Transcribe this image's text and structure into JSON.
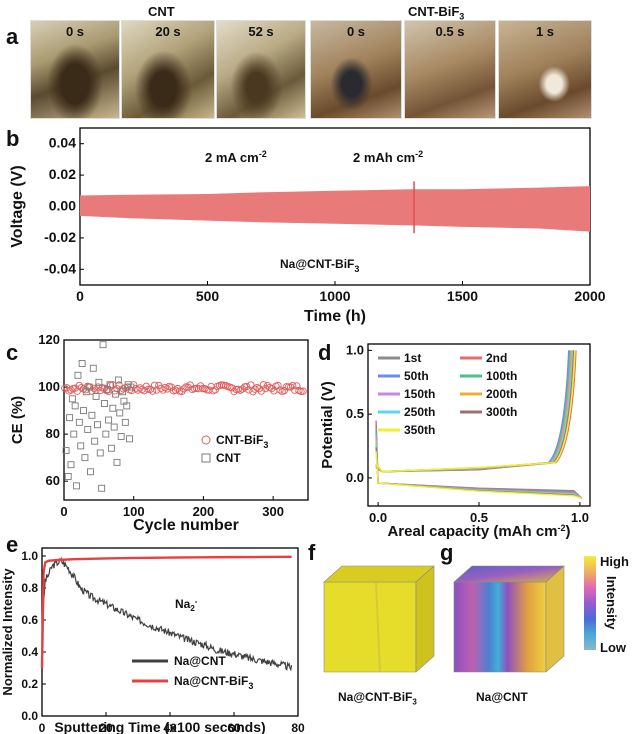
{
  "panel_a": {
    "label": "a",
    "groups": [
      {
        "title": "CNT",
        "times": [
          "0 s",
          "20 s",
          "52 s"
        ]
      },
      {
        "title": "CNT-BiF",
        "title_sub": "3",
        "times": [
          "0 s",
          "0.5 s",
          "1 s"
        ]
      }
    ]
  },
  "chart_data": [
    {
      "id": "b",
      "type": "line",
      "label": "b",
      "xlabel": "Time (h)",
      "ylabel": "Voltage (V)",
      "xlim": [
        0,
        2000
      ],
      "ylim": [
        -0.05,
        0.05
      ],
      "xticks": [
        "0",
        "500",
        "1000",
        "1500",
        "2000"
      ],
      "yticks": [
        "-0.04",
        "-0.02",
        "0.00",
        "0.02",
        "0.04"
      ],
      "annotations": {
        "current": "2 mA cm",
        "current_sup": "-2",
        "capacity": "2 mAh cm",
        "capacity_sup": "-2",
        "sample": "Na@CNT-BiF",
        "sample_sub": "3"
      },
      "color": "#e87a7a",
      "envelope": {
        "x": [
          0,
          200,
          500,
          700,
          1000,
          1300,
          1500,
          1800,
          2000
        ],
        "upper": [
          0.007,
          0.0075,
          0.008,
          0.009,
          0.01,
          0.011,
          0.011,
          0.012,
          0.013
        ],
        "lower": [
          -0.006,
          -0.0075,
          -0.009,
          -0.01,
          -0.011,
          -0.012,
          -0.013,
          -0.014,
          -0.016
        ]
      }
    },
    {
      "id": "c",
      "type": "scatter",
      "label": "c",
      "xlabel": "Cycle number",
      "ylabel": "CE (%)",
      "xlim": [
        0,
        350
      ],
      "ylim": [
        52,
        120
      ],
      "xticks": [
        "0",
        "100",
        "200",
        "300"
      ],
      "yticks": [
        "60",
        "80",
        "100",
        "120"
      ],
      "series": [
        {
          "name": "CNT-BiF",
          "name_sub": "3",
          "marker": "circle",
          "color": "#e35a5a",
          "x_range": [
            1,
            345
          ],
          "values_mean": 99.5,
          "values_spread": 1.5
        },
        {
          "name": "CNT",
          "marker": "square",
          "color": "#7a7a7a",
          "x": [
            3,
            6,
            8,
            10,
            12,
            14,
            16,
            18,
            20,
            22,
            24,
            26,
            28,
            30,
            32,
            34,
            36,
            38,
            40,
            42,
            44,
            46,
            48,
            50,
            52,
            54,
            56,
            58,
            60,
            62,
            64,
            66,
            68,
            70,
            72,
            74,
            76,
            78,
            80,
            82,
            84,
            86,
            88,
            90,
            92,
            94,
            96
          ],
          "y": [
            73,
            62,
            87,
            67,
            95,
            80,
            92,
            58,
            105,
            85,
            75,
            110,
            90,
            70,
            98,
            82,
            100,
            64,
            88,
            108,
            77,
            96,
            84,
            102,
            72,
            57,
            118,
            93,
            80,
            99,
            86,
            101,
            74,
            91,
            83,
            97,
            68,
            103,
            89,
            79,
            98,
            94,
            85,
            92,
            101,
            78,
            100
          ]
        }
      ]
    },
    {
      "id": "d",
      "type": "line",
      "label": "d",
      "xlabel": "Areal capacity (mAh cm",
      "xlabel_sup": "-2",
      "xlabel_end": ")",
      "ylabel": "Potential (V)",
      "xlim": [
        -0.05,
        1.05
      ],
      "ylim": [
        -0.22,
        1.05
      ],
      "xticks": [
        "0.0",
        "0.5",
        "1.0"
      ],
      "yticks": [
        "0.0",
        "0.5",
        "1.0"
      ],
      "series": [
        {
          "name": "1st",
          "color": "#8c8c8c"
        },
        {
          "name": "2nd",
          "color": "#e86a6a"
        },
        {
          "name": "50th",
          "color": "#6b8cf0"
        },
        {
          "name": "100th",
          "color": "#4cc08a"
        },
        {
          "name": "150th",
          "color": "#c48ae0"
        },
        {
          "name": "200th",
          "color": "#e8b030"
        },
        {
          "name": "250th",
          "color": "#5ad8e8"
        },
        {
          "name": "300th",
          "color": "#a07070"
        },
        {
          "name": "350th",
          "color": "#f0f030"
        }
      ]
    },
    {
      "id": "e",
      "type": "line",
      "label": "e",
      "xlabel": "Sputtering Time (x100 seconds)",
      "ylabel": "Normalized Intensity",
      "xlim": [
        0,
        80
      ],
      "ylim": [
        0,
        1.05
      ],
      "xticks": [
        "0",
        "20",
        "40",
        "60",
        "80"
      ],
      "yticks": [
        "0.0",
        "0.2",
        "0.4",
        "0.6",
        "0.8",
        "1.0"
      ],
      "annotation": "Na",
      "annotation_sub": "2",
      "annotation_sup": "-",
      "series": [
        {
          "name": "Na@CNT",
          "color": "#404040",
          "x": [
            0,
            1,
            2,
            3,
            4,
            5,
            6,
            7,
            8,
            9,
            10,
            12,
            15,
            20,
            25,
            30,
            35,
            40,
            45,
            50,
            55,
            60,
            65,
            70,
            75,
            78
          ],
          "y": [
            0.55,
            0.85,
            0.88,
            0.93,
            0.95,
            0.96,
            0.97,
            0.95,
            0.93,
            0.9,
            0.87,
            0.8,
            0.75,
            0.7,
            0.65,
            0.6,
            0.56,
            0.52,
            0.48,
            0.45,
            0.41,
            0.39,
            0.36,
            0.34,
            0.32,
            0.3
          ]
        },
        {
          "name": "Na@CNT-BiF",
          "name_sub": "3",
          "color": "#e84040",
          "x": [
            0,
            0.5,
            1,
            2,
            5,
            10,
            20,
            30,
            40,
            50,
            60,
            70,
            78
          ],
          "y": [
            0.3,
            0.9,
            0.96,
            0.97,
            0.975,
            0.98,
            0.985,
            0.988,
            0.99,
            0.992,
            0.993,
            0.994,
            0.995
          ]
        }
      ]
    }
  ],
  "panel_f": {
    "label": "f",
    "caption": "Na@CNT-BiF",
    "caption_sub": "3",
    "color": "#e6dc2a"
  },
  "panel_g": {
    "label": "g",
    "caption": "Na@CNT"
  },
  "colorbar": {
    "high": "High",
    "low": "Low",
    "title": "Intensity",
    "colors": [
      "#f4ec3a",
      "#f0b060",
      "#e06ab0",
      "#9a5ad0",
      "#4c6ad8",
      "#4aa8d8",
      "#8ab8c8"
    ]
  }
}
